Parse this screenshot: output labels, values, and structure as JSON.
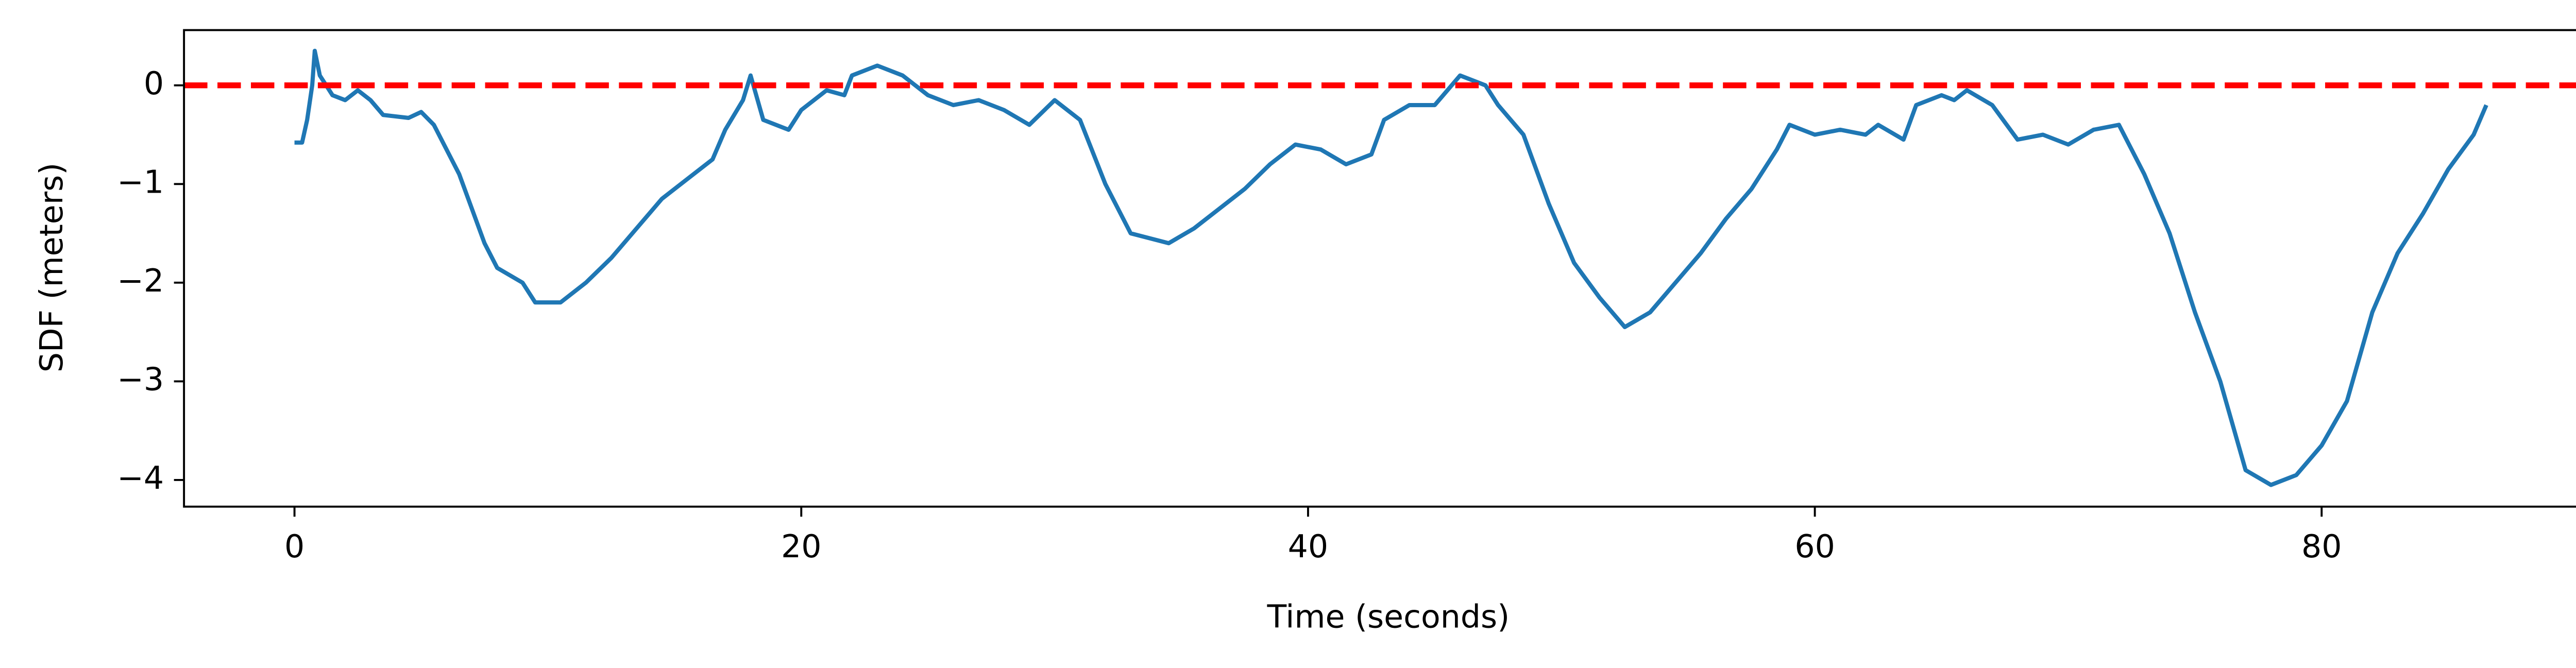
{
  "chart_data": {
    "type": "line",
    "xlabel": "Time (seconds)",
    "ylabel": "SDF (meters)",
    "x": [
      0,
      0.3,
      0.5,
      0.7,
      0.8,
      1.0,
      1.5,
      2.0,
      2.5,
      3,
      3.5,
      4.5,
      5,
      5.5,
      6.5,
      7.5,
      8,
      9,
      9.5,
      10.5,
      11.5,
      12.5,
      13.5,
      14.5,
      15.5,
      16.5,
      17,
      17.7,
      18,
      18.5,
      19.5,
      20,
      21,
      21.7,
      22,
      23,
      24,
      25,
      26,
      27,
      28,
      29,
      30,
      31,
      32,
      33,
      34.5,
      35.5,
      36.5,
      37.5,
      38.5,
      39.5,
      40.5,
      41.5,
      42.5,
      43,
      44,
      45,
      46,
      47,
      47.5,
      48.5,
      49.5,
      50.5,
      51.5,
      52.5,
      53.5,
      54.5,
      55.5,
      56.5,
      57.5,
      58.5,
      59,
      60,
      61,
      62,
      62.5,
      63.5,
      64,
      65,
      65.5,
      66,
      67,
      68,
      69,
      70,
      71,
      72,
      73,
      74,
      75,
      76,
      77,
      78,
      79,
      80,
      81,
      82,
      83,
      84,
      85,
      86,
      86.5
    ],
    "series": [
      {
        "color": "#1f77b4",
        "values": [
          -0.58,
          -0.58,
          -0.35,
          0.0,
          0.35,
          0.1,
          -0.1,
          -0.15,
          -0.05,
          -0.15,
          -0.3,
          -0.33,
          -0.27,
          -0.4,
          -0.9,
          -1.6,
          -1.85,
          -2.0,
          -2.2,
          -2.2,
          -2.0,
          -1.75,
          -1.45,
          -1.15,
          -0.95,
          -0.75,
          -0.45,
          -0.15,
          0.1,
          -0.35,
          -0.45,
          -0.25,
          -0.05,
          -0.1,
          0.1,
          0.2,
          0.1,
          -0.1,
          -0.2,
          -0.15,
          -0.25,
          -0.4,
          -0.15,
          -0.35,
          -1.0,
          -1.5,
          -1.6,
          -1.45,
          -1.25,
          -1.05,
          -0.8,
          -0.6,
          -0.65,
          -0.8,
          -0.7,
          -0.35,
          -0.2,
          -0.2,
          0.1,
          0.0,
          -0.2,
          -0.5,
          -1.2,
          -1.8,
          -2.15,
          -2.45,
          -2.3,
          -2.0,
          -1.7,
          -1.35,
          -1.05,
          -0.65,
          -0.4,
          -0.5,
          -0.45,
          -0.5,
          -0.4,
          -0.55,
          -0.2,
          -0.1,
          -0.15,
          -0.05,
          -0.2,
          -0.55,
          -0.5,
          -0.6,
          -0.45,
          -0.4,
          -0.9,
          -1.5,
          -2.3,
          -3.0,
          -3.9,
          -4.05,
          -3.95,
          -3.65,
          -3.2,
          -2.3,
          -1.7,
          -1.3,
          -0.85,
          -0.5,
          -0.2
        ]
      }
    ],
    "hline": {
      "value": 0,
      "color": "#ff0000"
    },
    "xlim": [
      -4.36,
      90.7
    ],
    "xticks": [
      0,
      20,
      40,
      60,
      80
    ],
    "ylim": [
      -4.27,
      0.56
    ],
    "yticks": [
      {
        "value": -4,
        "label": "−4"
      },
      {
        "value": -3,
        "label": "−3"
      },
      {
        "value": -2,
        "label": "−2"
      },
      {
        "value": -1,
        "label": "−1"
      },
      0
    ]
  }
}
